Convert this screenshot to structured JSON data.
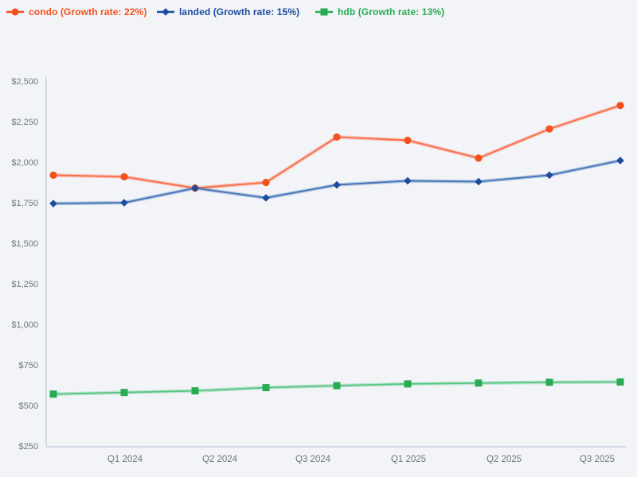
{
  "page": {
    "background_color": "#f2f4f7",
    "axis_line_color": "#c9d3e4",
    "tick_label_color": "#6e7584"
  },
  "chart_data": {
    "type": "line",
    "title": "",
    "xlabel": "",
    "ylabel": "",
    "grid": false,
    "legend_position": "top-left",
    "ylim": [
      250,
      2500
    ],
    "y_tick_labels": [
      "$2,500",
      "$2,250",
      "$2,000",
      "$1,750",
      "$1,500",
      "$1,250",
      "$1,000",
      "$750",
      "$500",
      "$250"
    ],
    "y_tick_values": [
      2500,
      2250,
      2000,
      1750,
      1500,
      1250,
      1000,
      750,
      500,
      250
    ],
    "x_tick_labels": [
      "Q1 2024",
      "Q2 2024",
      "Q3 2024",
      "Q1 2025",
      "Q2 2025",
      "Q3 2025"
    ],
    "series": [
      {
        "name": "condo",
        "legend_label": "condo (Growth rate: 22%)",
        "growth_rate": "22%",
        "marker": "circle",
        "color": "#f4511e",
        "line_color": "#fb6a47",
        "values": [
          1920,
          1910,
          1840,
          1875,
          2155,
          2135,
          2025,
          2205,
          2350
        ]
      },
      {
        "name": "landed",
        "legend_label": "landed (Growth rate: 15%)",
        "growth_rate": "15%",
        "marker": "diamond",
        "color": "#1d4c9f",
        "line_color": "#4472b8",
        "values": [
          1745,
          1750,
          1840,
          1780,
          1860,
          1885,
          1880,
          1920,
          2010
        ]
      },
      {
        "name": "hdb",
        "legend_label": "hdb (Growth rate: 13%)",
        "growth_rate": "13%",
        "marker": "square",
        "color": "#28ab53",
        "line_color": "#57c584",
        "values": [
          570,
          580,
          590,
          610,
          622,
          633,
          638,
          643,
          645
        ]
      }
    ]
  }
}
